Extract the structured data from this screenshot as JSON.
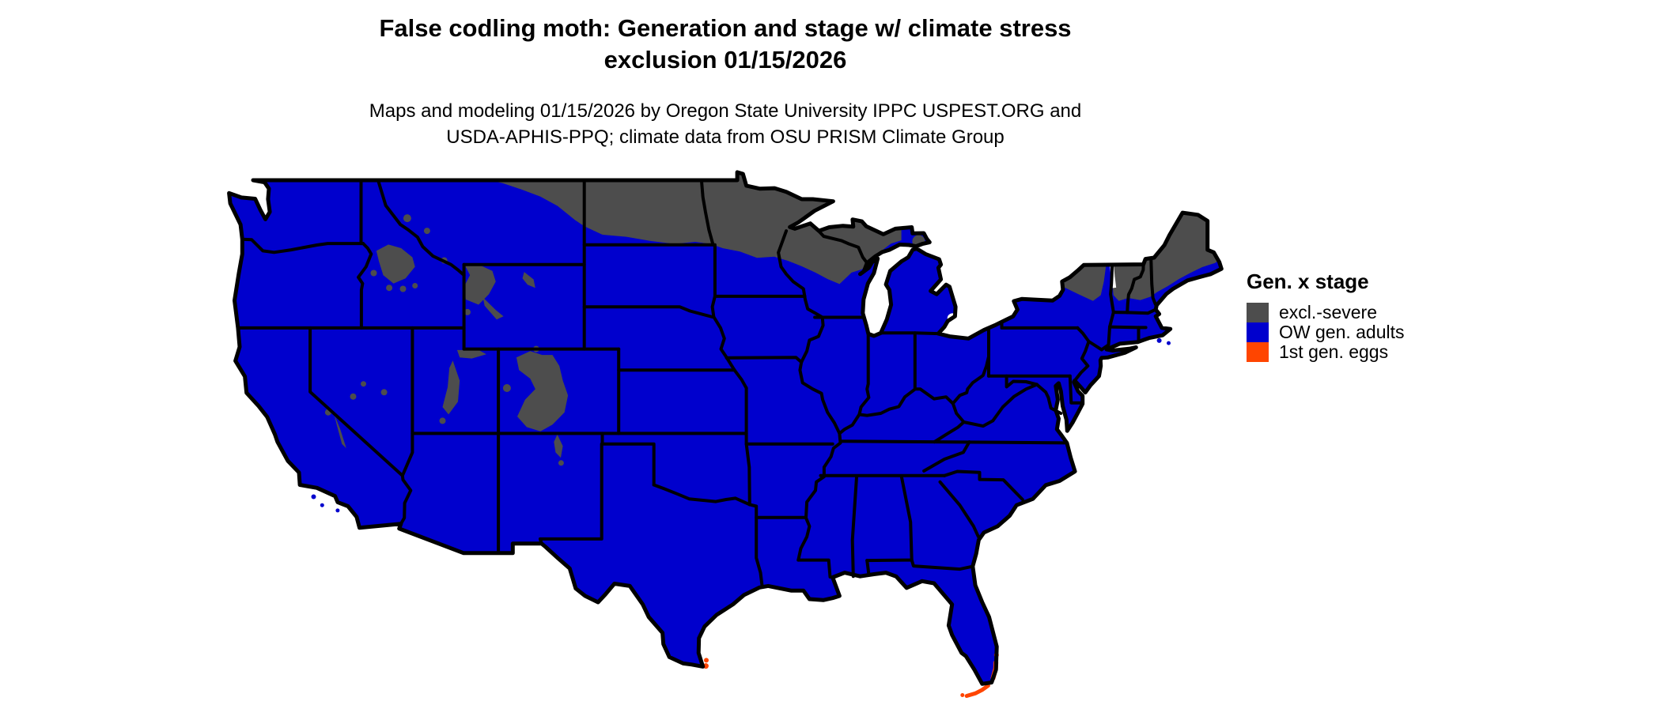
{
  "header": {
    "title_line1": "False codling moth: Generation and stage w/ climate stress",
    "title_line2": "exclusion 01/15/2026",
    "subtitle_line1": "Maps and modeling 01/15/2026 by Oregon State University IPPC USPEST.ORG and",
    "subtitle_line2": "USDA-APHIS-PPQ; climate data from OSU PRISM Climate Group"
  },
  "legend": {
    "title": "Gen. x stage",
    "items": [
      {
        "label": "excl.-severe",
        "color": "#4D4D4D"
      },
      {
        "label": "OW gen. adults",
        "color": "#0000CD"
      },
      {
        "label": "1st gen. eggs",
        "color": "#FF4500"
      }
    ]
  },
  "map": {
    "border_color": "#000000",
    "water_color": "#FFFFFF"
  }
}
